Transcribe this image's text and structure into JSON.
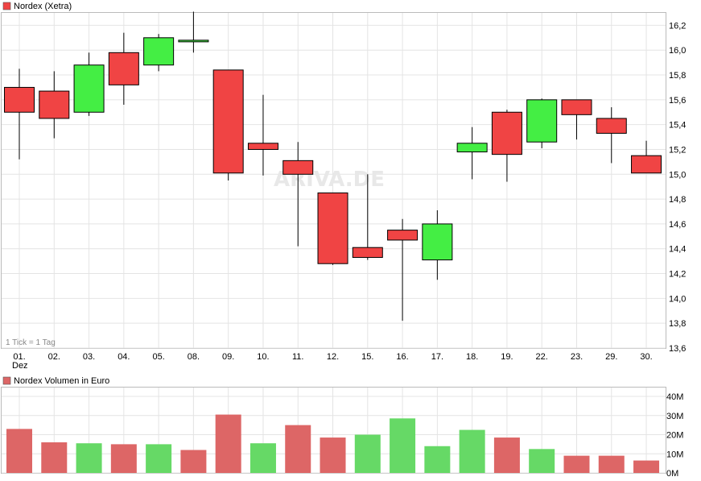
{
  "price_panel": {
    "legend": "Nordex (Xetra)",
    "tick_note": "1 Tick = 1 Tag",
    "watermark": "ARIVA.DE"
  },
  "volume_panel": {
    "legend": "Nordex Volumen in Euro"
  },
  "colors": {
    "up": "#44ee44",
    "down": "#f04444",
    "volume_up": "#66d966",
    "volume_down": "#dd6666",
    "grid": "#e4e4e4"
  },
  "chart_data": [
    {
      "type": "candlestick",
      "ylim": [
        13.6,
        16.3
      ],
      "yticks": [
        13.6,
        13.8,
        14.0,
        14.2,
        14.4,
        14.6,
        14.8,
        15.0,
        15.2,
        15.4,
        15.6,
        15.8,
        16.0,
        16.2
      ],
      "ytick_labels": [
        "13,6",
        "13,8",
        "14,0",
        "14,2",
        "14,4",
        "14,6",
        "14,8",
        "15,0",
        "15,2",
        "15,4",
        "15,6",
        "15,8",
        "16,0",
        "16,2"
      ],
      "categories": [
        "01.",
        "02.",
        "03.",
        "04.",
        "05.",
        "08.",
        "09.",
        "10.",
        "11.",
        "12.",
        "15.",
        "16.",
        "17.",
        "18.",
        "19.",
        "22.",
        "23.",
        "29.",
        "30."
      ],
      "first_category_sublabel": "Dez",
      "grid": true,
      "legend": "top-left",
      "candles": [
        {
          "open": 15.7,
          "close": 15.5,
          "high": 15.85,
          "low": 15.12
        },
        {
          "open": 15.67,
          "close": 15.45,
          "high": 15.83,
          "low": 15.29
        },
        {
          "open": 15.5,
          "close": 15.88,
          "high": 15.98,
          "low": 15.47
        },
        {
          "open": 15.98,
          "close": 15.72,
          "high": 16.14,
          "low": 15.56
        },
        {
          "open": 15.88,
          "close": 16.1,
          "high": 16.13,
          "low": 15.83
        },
        {
          "open": 16.07,
          "close": 16.08,
          "high": 16.31,
          "low": 15.98
        },
        {
          "open": 15.84,
          "close": 15.01,
          "high": 15.84,
          "low": 14.95
        },
        {
          "open": 15.25,
          "close": 15.2,
          "high": 15.64,
          "low": 14.99
        },
        {
          "open": 15.11,
          "close": 15.0,
          "high": 15.26,
          "low": 14.42
        },
        {
          "open": 14.85,
          "close": 14.28,
          "high": 14.85,
          "low": 14.27
        },
        {
          "open": 14.41,
          "close": 14.33,
          "high": 15.0,
          "low": 14.31
        },
        {
          "open": 14.55,
          "close": 14.47,
          "high": 14.64,
          "low": 13.82
        },
        {
          "open": 14.31,
          "close": 14.6,
          "high": 14.71,
          "low": 14.15
        },
        {
          "open": 15.18,
          "close": 15.25,
          "high": 15.38,
          "low": 14.96
        },
        {
          "open": 15.5,
          "close": 15.16,
          "high": 15.52,
          "low": 14.94
        },
        {
          "open": 15.26,
          "close": 15.6,
          "high": 15.61,
          "low": 15.21
        },
        {
          "open": 15.6,
          "close": 15.48,
          "high": 15.6,
          "low": 15.28
        },
        {
          "open": 15.45,
          "close": 15.33,
          "high": 15.54,
          "low": 15.09
        },
        {
          "open": 15.15,
          "close": 15.01,
          "high": 15.27,
          "low": 15.01
        }
      ]
    },
    {
      "type": "bar",
      "ylim": [
        0,
        40
      ],
      "yticks": [
        0,
        10,
        20,
        30,
        40
      ],
      "ytick_labels": [
        "0M",
        "10M",
        "20M",
        "30M",
        "40M"
      ],
      "unit": "M EUR",
      "categories": [
        "01.",
        "02.",
        "03.",
        "04.",
        "05.",
        "08.",
        "09.",
        "10.",
        "11.",
        "12.",
        "15.",
        "16.",
        "17.",
        "18.",
        "19.",
        "22.",
        "23.",
        "29.",
        "30."
      ],
      "grid": true,
      "legend": "top-left",
      "values": [
        23.0,
        16.0,
        15.5,
        15.0,
        15.0,
        12.0,
        30.5,
        15.5,
        25.0,
        18.5,
        20.0,
        28.5,
        14.0,
        22.5,
        18.5,
        12.5,
        9.0,
        9.0,
        6.5
      ],
      "direction": [
        "down",
        "down",
        "up",
        "down",
        "up",
        "down",
        "down",
        "up",
        "down",
        "down",
        "up",
        "up",
        "up",
        "up",
        "down",
        "up",
        "down",
        "down",
        "down"
      ]
    }
  ]
}
